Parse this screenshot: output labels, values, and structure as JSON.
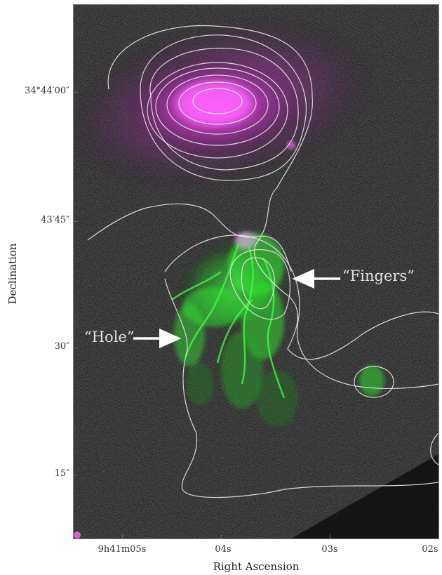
{
  "axes": {
    "x_title": "Right Ascension",
    "y_title": "Declination",
    "x_ticks": [
      {
        "label": "9h41m05s"
      },
      {
        "label": "04s"
      },
      {
        "label": "03s"
      },
      {
        "label": "02s"
      }
    ],
    "y_ticks": [
      {
        "label": "34°44′00″"
      },
      {
        "label": "43′45″"
      },
      {
        "label": "30″"
      },
      {
        "label": "15″"
      }
    ]
  },
  "annotations": {
    "hole": "“Hole”",
    "fingers": "“Fingers”"
  },
  "colors": {
    "background": "#0a0a0a",
    "magenta_emission": "#ff44ff",
    "green_emission": "#33ff33",
    "contours": "#e8e8e8",
    "arrows": "#ffffff"
  }
}
